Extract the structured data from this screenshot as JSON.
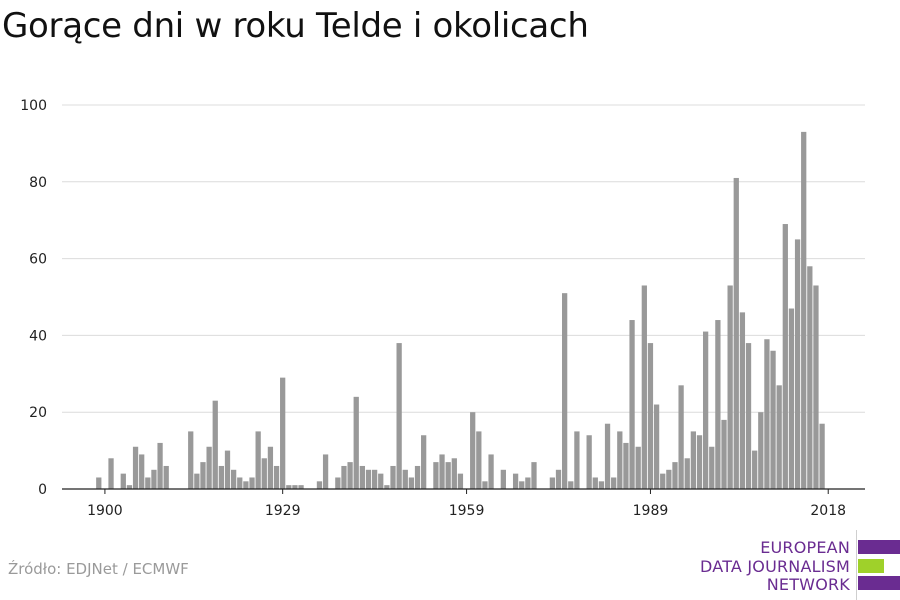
{
  "chart_data": {
    "type": "bar",
    "title": "Gorące dni w roku Telde i okolicach",
    "xlabel": "",
    "ylabel": "",
    "x_ticks": [
      1900,
      1929,
      1959,
      1989,
      2018
    ],
    "y_ticks": [
      0,
      20,
      40,
      60,
      80,
      100
    ],
    "xlim": [
      1893,
      2024
    ],
    "ylim": [
      0,
      100
    ],
    "grid": "horizontal",
    "bar_color": "#999999",
    "x": [
      1899,
      1900,
      1901,
      1902,
      1903,
      1904,
      1905,
      1906,
      1907,
      1908,
      1909,
      1910,
      1911,
      1912,
      1913,
      1914,
      1915,
      1916,
      1917,
      1918,
      1919,
      1920,
      1921,
      1922,
      1923,
      1924,
      1925,
      1926,
      1927,
      1928,
      1929,
      1930,
      1931,
      1932,
      1933,
      1934,
      1935,
      1936,
      1937,
      1938,
      1939,
      1940,
      1941,
      1942,
      1943,
      1944,
      1945,
      1946,
      1947,
      1948,
      1949,
      1950,
      1951,
      1952,
      1953,
      1954,
      1955,
      1956,
      1957,
      1958,
      1959,
      1960,
      1961,
      1962,
      1963,
      1964,
      1965,
      1966,
      1967,
      1968,
      1969,
      1970,
      1971,
      1972,
      1973,
      1974,
      1975,
      1976,
      1977,
      1978,
      1979,
      1980,
      1981,
      1982,
      1983,
      1984,
      1985,
      1986,
      1987,
      1988,
      1989,
      1990,
      1991,
      1992,
      1993,
      1994,
      1995,
      1996,
      1997,
      1998,
      1999,
      2000,
      2001,
      2002,
      2003,
      2004,
      2005,
      2006,
      2007,
      2008,
      2009,
      2010,
      2011,
      2012,
      2013,
      2014,
      2015,
      2016,
      2017,
      2018,
      2019
    ],
    "values": [
      3,
      0,
      8,
      0,
      4,
      1,
      11,
      9,
      3,
      5,
      12,
      6,
      0,
      0,
      0,
      15,
      4,
      7,
      11,
      23,
      6,
      10,
      5,
      3,
      2,
      3,
      15,
      8,
      11,
      6,
      29,
      1,
      1,
      1,
      0,
      0,
      2,
      9,
      0,
      3,
      6,
      7,
      24,
      6,
      5,
      5,
      4,
      1,
      6,
      38,
      5,
      3,
      6,
      14,
      0,
      7,
      9,
      7,
      8,
      4,
      0,
      20,
      15,
      2,
      9,
      0,
      5,
      0,
      4,
      2,
      3,
      7,
      0,
      0,
      3,
      5,
      51,
      2,
      15,
      0,
      14,
      3,
      2,
      17,
      3,
      15,
      12,
      44,
      11,
      53,
      38,
      22,
      4,
      5,
      7,
      27,
      8,
      15,
      14,
      41,
      11,
      44,
      18,
      53,
      81,
      46,
      38,
      10,
      20,
      39,
      36,
      27,
      69,
      47,
      65,
      93,
      58,
      53,
      17,
      0,
      0
    ]
  },
  "source": "Źródło: EDJNet / ECMWF",
  "logo": {
    "line1": "EUROPEAN",
    "line2": "DATA JOURNALISM",
    "line3": "NETWORK",
    "purple": "#6a2c91",
    "green": "#9fd12a"
  }
}
